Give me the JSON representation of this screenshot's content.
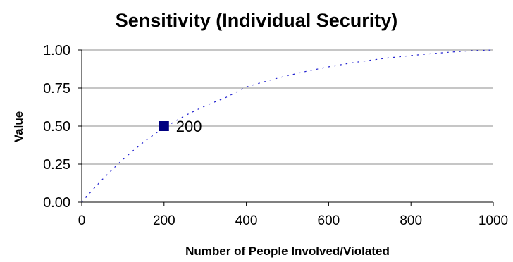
{
  "chart_data": {
    "type": "line",
    "title": "Sensitivity (Individual Security)",
    "xlabel": "Number of People Involved/Violated",
    "ylabel": "Value",
    "xlim": [
      0,
      1000
    ],
    "ylim": [
      0,
      1
    ],
    "x_ticks": [
      "0",
      "200",
      "400",
      "600",
      "800",
      "1000"
    ],
    "y_ticks": [
      "0.00",
      "0.25",
      "0.50",
      "0.75",
      "1.00"
    ],
    "grid": "horizontal",
    "series": [
      {
        "style": "dotted",
        "color": "#1f1fd0",
        "x": [
          0,
          25,
          50,
          75,
          100,
          125,
          150,
          175,
          200,
          250,
          300,
          350,
          400,
          450,
          500,
          550,
          600,
          650,
          700,
          750,
          800,
          850,
          900,
          950,
          1000
        ],
        "y": [
          0.0,
          0.0769,
          0.1492,
          0.217,
          0.2803,
          0.3392,
          0.3936,
          0.4435,
          0.489,
          0.5677,
          0.6331,
          0.6875,
          0.7575,
          0.7965,
          0.8314,
          0.8623,
          0.8893,
          0.9126,
          0.9325,
          0.9493,
          0.9636,
          0.9759,
          0.9866,
          0.9955,
          1.0
        ]
      }
    ],
    "marker": {
      "x": 200,
      "y": 0.5,
      "label": "200",
      "shape": "square",
      "color": "#000080"
    }
  }
}
